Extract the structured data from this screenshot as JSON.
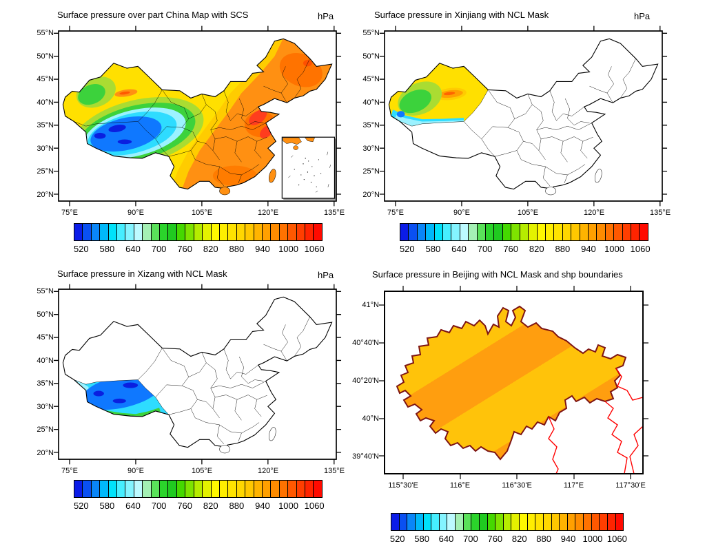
{
  "page": {
    "background": "#ffffff"
  },
  "panels": {
    "tl": {
      "title": "Surface pressure over part China Map with SCS",
      "units_label": "hPa"
    },
    "tr": {
      "title": "Surface pressure in Xinjiang with NCL Mask",
      "units_label": "hPa"
    },
    "bl": {
      "title": "Surface pressure in Xizang with NCL Mask",
      "units_label": "hPa"
    },
    "br": {
      "title": "Surface pressure in Beijing with NCL Mask and shp boundaries"
    }
  },
  "china_axes": {
    "lat_ticks": [
      "55°N",
      "50°N",
      "45°N",
      "40°N",
      "35°N",
      "30°N",
      "25°N",
      "20°N"
    ],
    "lon_ticks": [
      "75°E",
      "90°E",
      "105°E",
      "120°E",
      "135°E"
    ]
  },
  "beijing_axes": {
    "lat_ticks": [
      "41°N",
      "40°40'N",
      "40°20'N",
      "40°N",
      "39°40'N"
    ],
    "lon_ticks": [
      "115°30'E",
      "116°E",
      "116°30'E",
      "117°E",
      "117°30'E"
    ]
  },
  "colorbar": {
    "tick_labels": [
      "520",
      "580",
      "640",
      "700",
      "760",
      "820",
      "880",
      "940",
      "1000",
      "1060"
    ],
    "colors": [
      "#0b1ce8",
      "#0a50f2",
      "#0a86f8",
      "#00b8fa",
      "#00e2fa",
      "#46eeff",
      "#84f4ff",
      "#bdfaff",
      "#a4f0b4",
      "#5ae25a",
      "#2bd42b",
      "#20ca20",
      "#45d800",
      "#7ee300",
      "#b6ec00",
      "#e4f200",
      "#fff800",
      "#ffee00",
      "#ffe300",
      "#ffd700",
      "#ffc800",
      "#ffb400",
      "#ffa000",
      "#ff8c00",
      "#ff7200",
      "#ff5800",
      "#ff3e00",
      "#ff2400",
      "#ff0a00"
    ]
  },
  "map_colors": {
    "base_yellow": "#ffe000",
    "gold": "#ffcc00",
    "east_orange": "#ff9012",
    "deep_orange": "#ff7300",
    "red_spot": "#ff3d1e",
    "yellow_green": "#aadc32",
    "green": "#3cd23c",
    "cyan": "#2edcff",
    "light_cyan": "#9cf2ff",
    "blue": "#0f78ff",
    "dark_blue": "#0a1fe0",
    "beijing_gold": "#ffc30a",
    "beijing_orange": "#ff9e0f",
    "beijing_border": "#7d1414",
    "shp_red": "#ff0000",
    "outline": "#000000"
  },
  "chart_data": [
    {
      "type": "heatmap",
      "subtype": "filled_contour_map",
      "title": "Surface pressure over part China Map with SCS",
      "units": "hPa",
      "x_ticks": [
        "75°E",
        "90°E",
        "105°E",
        "120°E",
        "135°E"
      ],
      "y_ticks": [
        "55°N",
        "50°N",
        "45°N",
        "40°N",
        "35°N",
        "30°N",
        "25°N",
        "20°N"
      ],
      "colorbar_levels": {
        "min": 500,
        "max": 1080,
        "step": 20,
        "labeled": [
          520,
          580,
          640,
          700,
          760,
          820,
          880,
          940,
          1000,
          1060
        ]
      },
      "legend_position": "bottom",
      "grid": false,
      "notes": "Pressure field filled over all of China: ~520-640 hPa (blue) over the Tibetan Plateau, ~640-780 (cyan-green) on the plateau margins, ~840-960 (yellow) over Xinjiang and Inner Mongolia with an orange ~960 spot in the Turpan Basin, ~960-1040 (orange-red) over east, northeast and south China; inset box at lower right shows the South China Sea islands."
    },
    {
      "type": "heatmap",
      "subtype": "filled_contour_map",
      "title": "Surface pressure in Xinjiang with NCL Mask",
      "units": "hPa",
      "x_ticks": [
        "75°E",
        "90°E",
        "105°E",
        "120°E",
        "135°E"
      ],
      "y_ticks": [
        "55°N",
        "50°N",
        "45°N",
        "40°N",
        "35°N",
        "30°N",
        "25°N",
        "20°N"
      ],
      "colorbar_levels": {
        "min": 500,
        "max": 1080,
        "step": 20,
        "labeled": [
          520,
          580,
          640,
          700,
          760,
          820,
          880,
          940,
          1000,
          1060
        ]
      },
      "legend_position": "bottom",
      "grid": false,
      "notes": "Only Xinjiang is filled: yellow ~880-940 over most of it, green ~700-780 in the west, cyan ~640-700 along the southern rim, a small blue ~600 patch at the southwest corner and an orange ~960 streak in the Turpan Basin; the rest of China is empty outlines."
    },
    {
      "type": "heatmap",
      "subtype": "filled_contour_map",
      "title": "Surface pressure in Xizang with NCL Mask",
      "units": "hPa",
      "x_ticks": [
        "75°E",
        "90°E",
        "105°E",
        "120°E",
        "135°E"
      ],
      "y_ticks": [
        "55°N",
        "50°N",
        "45°N",
        "40°N",
        "35°N",
        "30°N",
        "25°N",
        "20°N"
      ],
      "colorbar_levels": {
        "min": 500,
        "max": 1080,
        "step": 20,
        "labeled": [
          520,
          580,
          640,
          700,
          760,
          820,
          880,
          940,
          1000,
          1060
        ]
      },
      "legend_position": "bottom",
      "grid": false,
      "notes": "Only Xizang (Tibet) is filled: blue ~560-600 over most of the plateau with darker ~540 pockets, cyan fringe ~620-660, green to yellow ~700-820 along the southern edge; the rest of China is empty outlines."
    },
    {
      "type": "heatmap",
      "subtype": "filled_contour_map",
      "title": "Surface pressure in Beijing with NCL Mask and shp boundaries",
      "units": "hPa",
      "x_ticks": [
        "115°30'E",
        "116°E",
        "116°30'E",
        "117°E",
        "117°30'E"
      ],
      "y_ticks": [
        "41°N",
        "40°40'N",
        "40°20'N",
        "40°N",
        "39°40'N"
      ],
      "colorbar_levels": {
        "min": 500,
        "max": 1080,
        "step": 20,
        "labeled": [
          520,
          580,
          640,
          700,
          760,
          820,
          880,
          940,
          1000,
          1060
        ]
      },
      "legend_position": "bottom",
      "grid": false,
      "notes": "Beijing municipality filled with ~940-1000 hPa gold and orange diagonal contour bands (NW-SE gradient), dark red municipal outline; thin red shapefile boundaries of neighboring Hebei/Tianjin areas to the southeast."
    }
  ]
}
